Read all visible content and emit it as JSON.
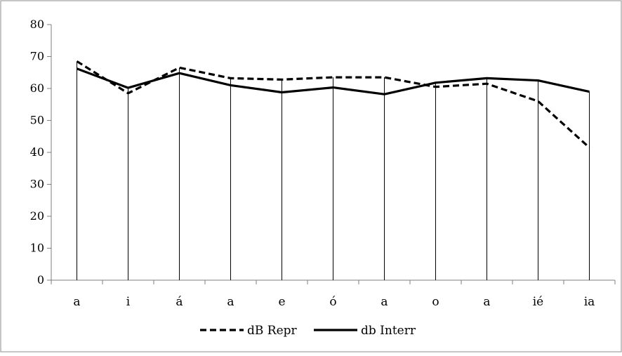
{
  "chart_data": {
    "type": "line",
    "title": "",
    "xlabel": "",
    "ylabel": "",
    "categories": [
      "a",
      "i",
      "á",
      "a",
      "e",
      "ó",
      "a",
      "o",
      "a",
      "ié",
      "ia"
    ],
    "y_ticks": [
      "0",
      "10",
      "20",
      "30",
      "40",
      "50",
      "60",
      "70",
      "80"
    ],
    "ylim": [
      0,
      80
    ],
    "drop_lines": true,
    "grid": false,
    "legend_position": "bottom",
    "series": [
      {
        "name": "dB Repr",
        "style": "dashed",
        "color": "#000000",
        "values": [
          68.5,
          58.5,
          66.5,
          63.2,
          62.8,
          63.5,
          63.5,
          60.5,
          61.5,
          56,
          41.5
        ]
      },
      {
        "name": "db Interr",
        "style": "solid",
        "color": "#000000",
        "values": [
          66.2,
          60.2,
          64.8,
          61,
          58.8,
          60.3,
          58.2,
          61.8,
          63.2,
          62.5,
          59
        ]
      }
    ]
  }
}
